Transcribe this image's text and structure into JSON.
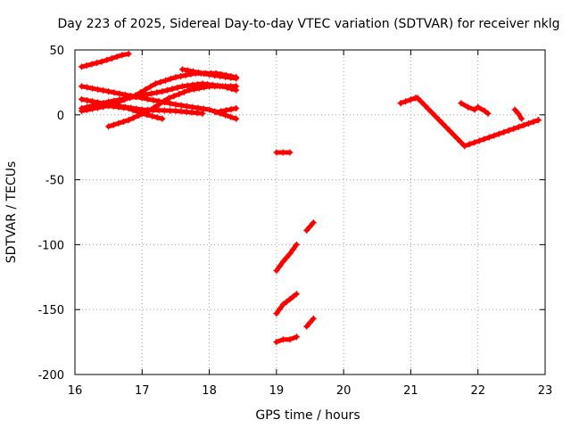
{
  "chart_data": {
    "type": "scatter",
    "title": "Day 223 of 2025, Sidereal Day-to-day VTEC variation (SDTVAR) for receiver nklg",
    "xlabel": "GPS time / hours",
    "ylabel": "SDTVAR / TECUs",
    "xlim": [
      16,
      23
    ],
    "ylim": [
      -200,
      50
    ],
    "xticks": [
      16,
      17,
      18,
      19,
      20,
      21,
      22,
      23
    ],
    "yticks": [
      50,
      0,
      -50,
      -100,
      -150,
      -200
    ],
    "grid": true,
    "marker": "+",
    "color": "#ff0000",
    "series": [
      {
        "name": "arc1",
        "points": [
          [
            16.1,
            37
          ],
          [
            16.4,
            41
          ],
          [
            16.7,
            46
          ],
          [
            16.8,
            47
          ]
        ]
      },
      {
        "name": "arc2",
        "points": [
          [
            16.1,
            22
          ],
          [
            16.5,
            18
          ],
          [
            17.0,
            13
          ],
          [
            17.5,
            8
          ],
          [
            18.0,
            4
          ],
          [
            18.4,
            -3
          ]
        ]
      },
      {
        "name": "arc3",
        "points": [
          [
            16.1,
            12
          ],
          [
            16.5,
            8
          ],
          [
            17.0,
            4
          ],
          [
            17.5,
            3
          ],
          [
            17.9,
            1
          ]
        ]
      },
      {
        "name": "arc4",
        "points": [
          [
            16.1,
            3
          ],
          [
            16.5,
            7
          ],
          [
            16.9,
            15
          ],
          [
            17.2,
            24
          ],
          [
            17.5,
            29
          ],
          [
            17.8,
            32
          ],
          [
            18.1,
            32
          ],
          [
            18.4,
            29
          ]
        ]
      },
      {
        "name": "arc5",
        "points": [
          [
            16.1,
            5
          ],
          [
            16.5,
            10
          ],
          [
            16.9,
            14
          ],
          [
            17.3,
            18
          ],
          [
            17.6,
            22
          ],
          [
            17.9,
            24
          ],
          [
            18.2,
            22
          ],
          [
            18.4,
            19
          ]
        ]
      },
      {
        "name": "arc6",
        "points": [
          [
            16.5,
            -9
          ],
          [
            16.8,
            -4
          ],
          [
            17.1,
            3
          ],
          [
            17.4,
            13
          ],
          [
            17.7,
            19
          ],
          [
            18.0,
            22
          ],
          [
            18.4,
            22
          ]
        ]
      },
      {
        "name": "arc7",
        "points": [
          [
            16.5,
            7
          ],
          [
            16.8,
            5
          ],
          [
            17.0,
            1
          ],
          [
            17.3,
            -3
          ]
        ]
      },
      {
        "name": "arc8",
        "points": [
          [
            17.6,
            35
          ],
          [
            18.0,
            31
          ],
          [
            18.4,
            28
          ]
        ]
      },
      {
        "name": "arc9",
        "points": [
          [
            18.1,
            2
          ],
          [
            18.4,
            5
          ]
        ]
      },
      {
        "name": "arc10",
        "points": [
          [
            19.0,
            -29
          ],
          [
            19.1,
            -29
          ],
          [
            19.2,
            -29
          ]
        ]
      },
      {
        "name": "arc11",
        "points": [
          [
            19.0,
            -120
          ],
          [
            19.1,
            -113
          ],
          [
            19.2,
            -107
          ],
          [
            19.3,
            -100
          ]
        ]
      },
      {
        "name": "arc12",
        "points": [
          [
            19.45,
            -89
          ],
          [
            19.55,
            -83
          ]
        ]
      },
      {
        "name": "arc13",
        "points": [
          [
            19.0,
            -153
          ],
          [
            19.1,
            -146
          ],
          [
            19.2,
            -142
          ],
          [
            19.3,
            -138
          ]
        ]
      },
      {
        "name": "arc14",
        "points": [
          [
            19.45,
            -163
          ],
          [
            19.55,
            -157
          ]
        ]
      },
      {
        "name": "arc15",
        "points": [
          [
            19.0,
            -175
          ],
          [
            19.1,
            -173
          ],
          [
            19.2,
            -173
          ],
          [
            19.3,
            -171
          ]
        ]
      },
      {
        "name": "sat-points",
        "points": [
          [
            20.85,
            9
          ],
          [
            21.07,
            13
          ],
          [
            21.1,
            13
          ],
          [
            21.8,
            -24
          ],
          [
            22.9,
            -4
          ]
        ]
      },
      {
        "name": "arc16",
        "points": [
          [
            21.75,
            9
          ],
          [
            21.85,
            6
          ],
          [
            21.95,
            4
          ],
          [
            22.0,
            6
          ],
          [
            22.1,
            3
          ],
          [
            22.15,
            1
          ]
        ]
      },
      {
        "name": "arc17",
        "points": [
          [
            22.55,
            4
          ],
          [
            22.6,
            1
          ],
          [
            22.65,
            -3
          ]
        ]
      }
    ]
  }
}
